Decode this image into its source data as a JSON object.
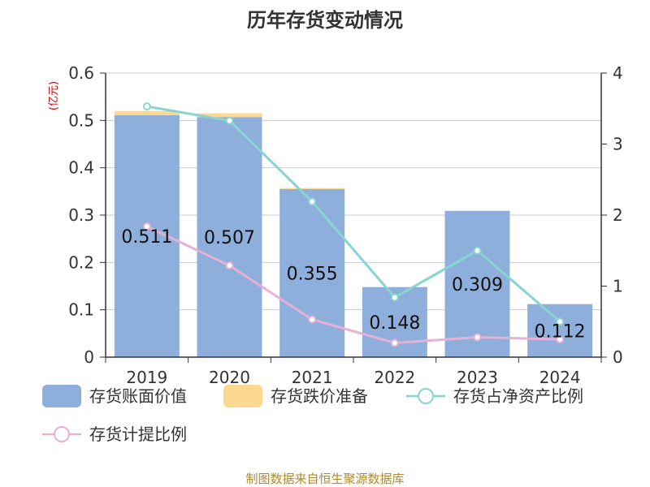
{
  "chart_data": {
    "type": "bar",
    "title": "历年存货变动情况",
    "y_unit": "(亿元)",
    "categories": [
      "2019",
      "2020",
      "2021",
      "2022",
      "2023",
      "2024"
    ],
    "bar_series": [
      {
        "name": "存货账面价值",
        "values": [
          0.511,
          0.507,
          0.355,
          0.148,
          0.309,
          0.112
        ],
        "color": "#8eaedb"
      },
      {
        "name": "存货跌价准备",
        "values": [
          0.009,
          0.008,
          0.002,
          0.0,
          0.0,
          0.0
        ],
        "color": "#fcd891"
      }
    ],
    "line_series": [
      {
        "name": "存货占净资产比例",
        "values": [
          3.53,
          3.33,
          2.19,
          0.84,
          1.5,
          0.5
        ],
        "color": "#87d5d3"
      },
      {
        "name": "存货计提比例",
        "values": [
          1.84,
          1.29,
          0.53,
          0.2,
          0.28,
          0.25
        ],
        "color": "#e5b1d6"
      }
    ],
    "bar_labels": [
      "0.511",
      "0.507",
      "0.355",
      "0.148",
      "0.309",
      "0.112"
    ],
    "left_axis": {
      "min": 0,
      "max": 0.6,
      "ticks": [
        "0",
        "0.1",
        "0.2",
        "0.3",
        "0.4",
        "0.5",
        "0.6"
      ]
    },
    "right_axis": {
      "min": 0,
      "max": 4,
      "ticks": [
        "0",
        "1",
        "2",
        "3",
        "4"
      ]
    },
    "grid": true,
    "legend_position": "bottom"
  },
  "source": "制图数据来自恒生聚源数据库"
}
